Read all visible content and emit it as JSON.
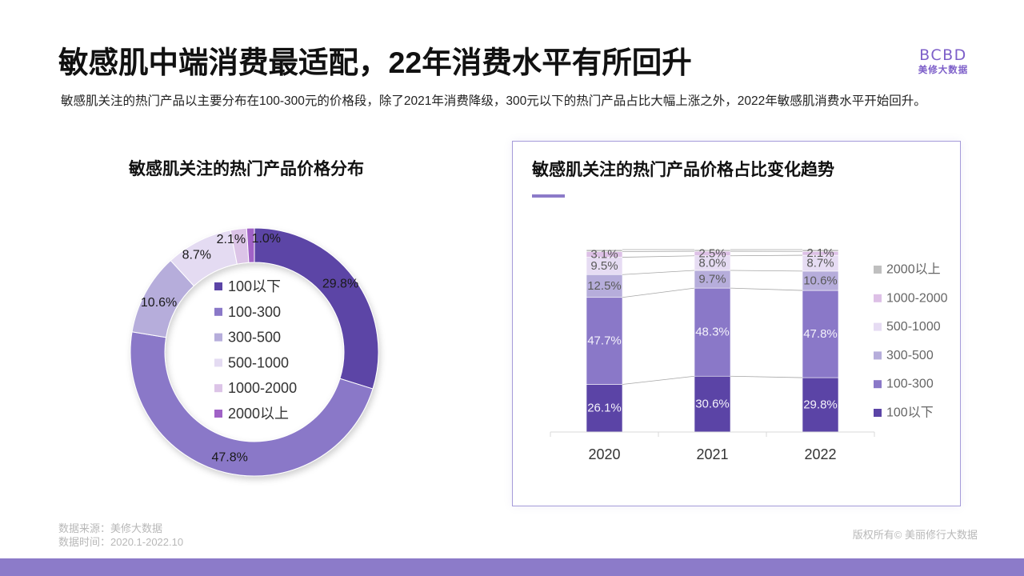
{
  "slide": {
    "title": "敏感肌中端消费最适配，22年消费水平有所回升",
    "subtitle": "敏感肌关注的热门产品以主要分布在100-300元的价格段，除了2021年消费降级，300元以下的热门产品占比大幅上涨之外，2022年敏感肌消费水平开始回升。"
  },
  "logo": {
    "mark": "BCBD",
    "name": "美修大数据"
  },
  "footer": {
    "source": "数据来源：美修大数据",
    "period": "数据时间：2020.1-2022.10",
    "copyright": "版权所有© 美丽修行大数据"
  },
  "theme": {
    "brand": "#7D5FC9",
    "accent": "#8C7BC9",
    "panel_border": "#A59BD9"
  },
  "chart_data": [
    {
      "type": "pie",
      "donut": true,
      "title": "敏感肌关注的热门产品价格分布",
      "categories": [
        "100以下",
        "100-300",
        "300-500",
        "500-1000",
        "1000-2000",
        "2000以上"
      ],
      "values": [
        29.8,
        47.8,
        10.6,
        8.7,
        2.1,
        1.0
      ],
      "labels": [
        "29.8%",
        "47.8%",
        "10.6%",
        "8.7%",
        "2.1%",
        "1.0%"
      ],
      "colors": [
        "#5B44A6",
        "#8A78C8",
        "#B6ADDB",
        "#E4DBF2",
        "#DCC4E7",
        "#A062C6"
      ],
      "legend": "center"
    },
    {
      "type": "bar",
      "stacked": true,
      "title": "敏感肌关注的热门产品价格占比变化趋势",
      "categories": [
        "2020",
        "2021",
        "2022"
      ],
      "series": [
        {
          "name": "100以下",
          "values": [
            26.1,
            30.6,
            29.8
          ],
          "labels": [
            "26.1%",
            "30.6%",
            "29.8%"
          ],
          "color": "#5B44A6"
        },
        {
          "name": "100-300",
          "values": [
            47.7,
            48.3,
            47.8
          ],
          "labels": [
            "47.7%",
            "48.3%",
            "47.8%"
          ],
          "color": "#8A78C8"
        },
        {
          "name": "300-500",
          "values": [
            12.5,
            9.7,
            10.6
          ],
          "labels": [
            "12.5%",
            "9.7%",
            "10.6%"
          ],
          "color": "#B6ADDB"
        },
        {
          "name": "500-1000",
          "values": [
            9.5,
            8.0,
            8.7
          ],
          "labels": [
            "9.5%",
            "8.0%",
            "8.7%"
          ],
          "color": "#E6DCF3"
        },
        {
          "name": "1000-2000",
          "values": [
            3.1,
            2.5,
            2.1
          ],
          "labels": [
            "3.1%",
            "2.5%",
            "2.1%"
          ],
          "color": "#DDC0E6"
        },
        {
          "name": "2000以上",
          "values": [
            1.1,
            0.9,
            1.0
          ],
          "labels": [],
          "color": "#BFBFBF"
        }
      ],
      "ylim": [
        0,
        100
      ],
      "legend": "right",
      "series_lines": true,
      "grid": false
    }
  ]
}
